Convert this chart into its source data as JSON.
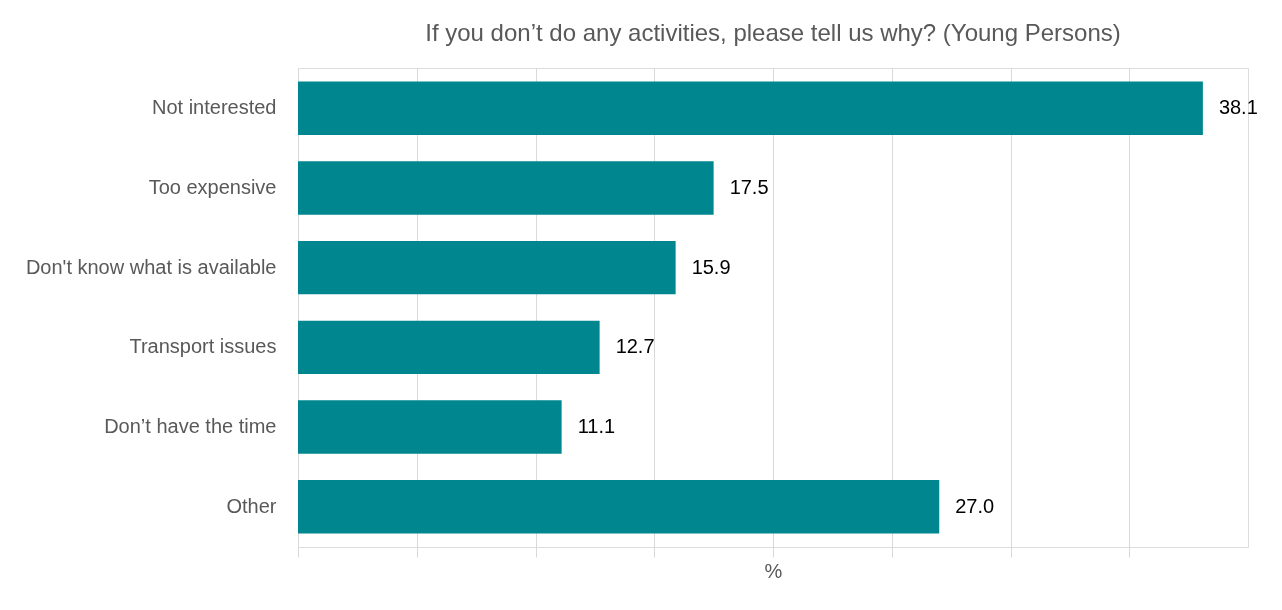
{
  "chart_data": {
    "type": "bar",
    "orientation": "horizontal",
    "title": "If you don’t do any activities, please tell us why? (Young Persons)",
    "xlabel": "%",
    "categories": [
      "Not interested",
      "Too expensive",
      "Don't know what is available",
      "Transport issues",
      "Don’t have the time",
      "Other"
    ],
    "values": [
      38.1,
      17.5,
      15.9,
      12.7,
      11.1,
      27.0
    ],
    "value_labels": [
      "38.1",
      "17.5",
      "15.9",
      "12.7",
      "11.1",
      "27.0"
    ],
    "color": "#00868f",
    "xlim": [
      0,
      40
    ],
    "xticks": [
      {
        "value": 0,
        "label": null
      },
      {
        "value": 5,
        "label": null
      },
      {
        "value": 10,
        "label": null
      },
      {
        "value": 15,
        "label": null
      },
      {
        "value": 20,
        "label": null
      },
      {
        "value": 25,
        "label": null
      },
      {
        "value": 30,
        "label": null
      },
      {
        "value": 35,
        "label": null
      }
    ],
    "tick_labels": "y",
    "grid": "x"
  }
}
